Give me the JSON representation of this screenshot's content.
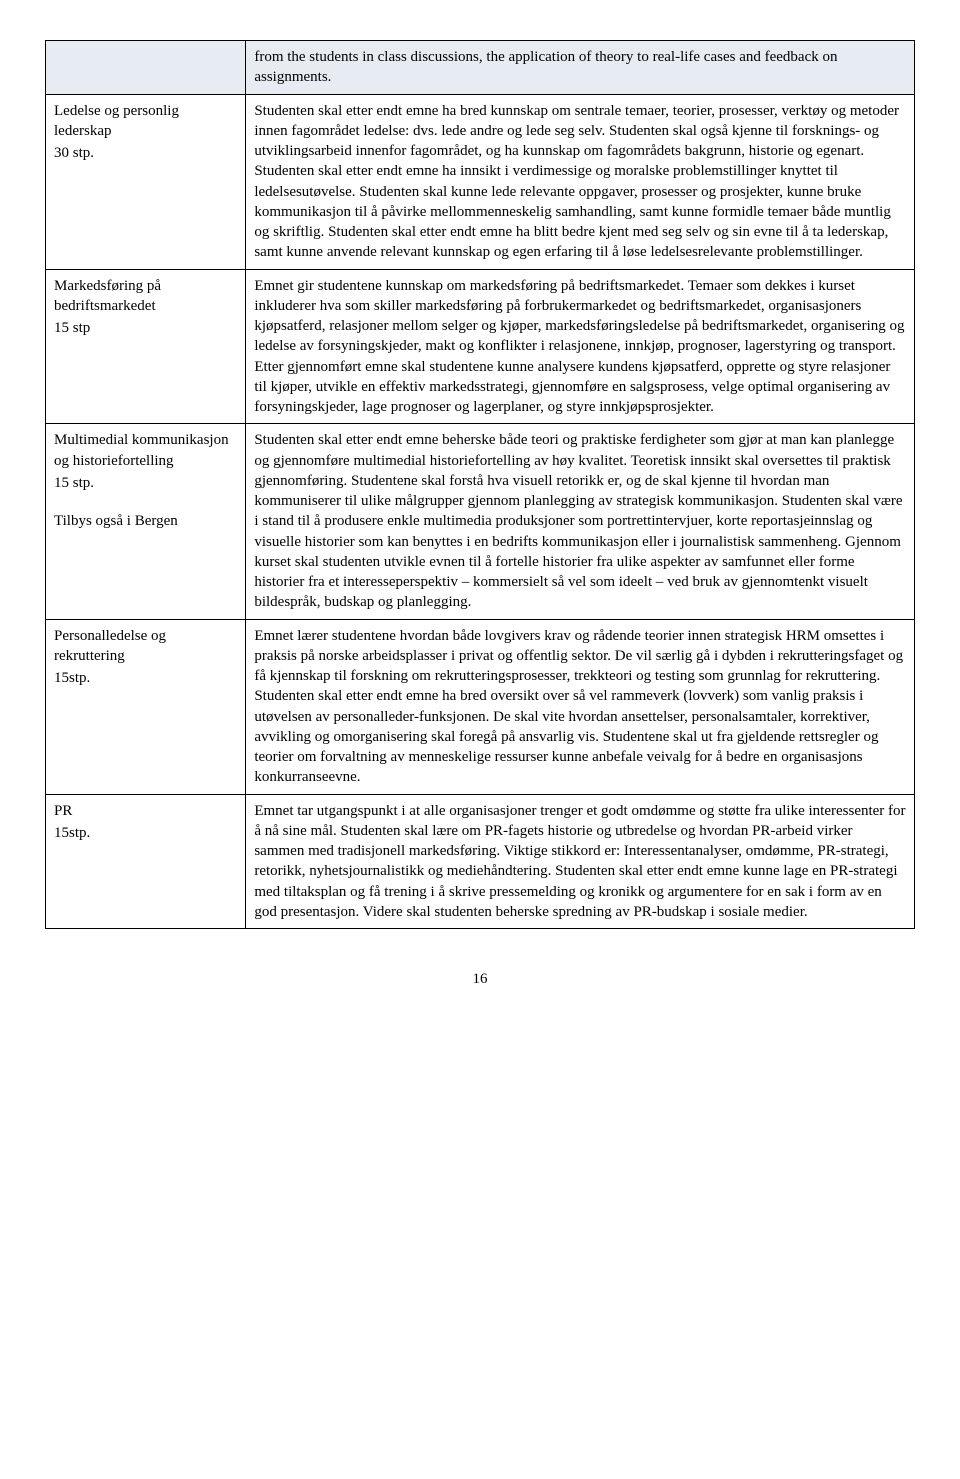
{
  "intro": {
    "left": "",
    "right": "from the students in class discussions, the application of theory to real-life cases and feedback on assignments."
  },
  "rows": [
    {
      "name": "Ledelse og personlig lederskap",
      "credits": "30 stp.",
      "extra": "",
      "desc": "Studenten skal etter endt emne ha bred kunnskap om sentrale temaer, teorier, prosesser, verktøy og metoder innen fagområdet ledelse: dvs. lede andre og lede seg selv. Studenten skal også kjenne til forsknings- og utviklingsarbeid innenfor fagområdet, og ha kunnskap om fagområdets bakgrunn, historie og egenart. Studenten skal etter endt emne ha innsikt i verdimessige og moralske problemstillinger knyttet til ledelsesutøvelse. Studenten skal kunne lede relevante oppgaver, prosesser og prosjekter, kunne bruke kommunikasjon til å påvirke mellommenneskelig samhandling, samt kunne formidle temaer både muntlig og skriftlig. Studenten skal etter endt emne ha blitt bedre kjent med seg selv og sin evne til å ta lederskap, samt kunne anvende relevant kunnskap og egen erfaring til å løse ledelsesrelevante problemstillinger."
    },
    {
      "name": "Markedsføring på bedriftsmarkedet",
      "credits": "15 stp",
      "extra": "",
      "desc": "Emnet gir studentene kunnskap om markedsføring på bedriftsmarkedet. Temaer som dekkes i kurset inkluderer hva som skiller markedsføring på forbrukermarkedet og bedriftsmarkedet, organisasjoners kjøpsatferd, relasjoner mellom selger og kjøper, markedsføringsledelse på bedriftsmarkedet, organisering og ledelse av forsyningskjeder, makt og konflikter i relasjonene, innkjøp, prognoser, lagerstyring og transport. Etter gjennomført emne skal studentene kunne analysere kundens kjøpsatferd, opprette og styre relasjoner til kjøper, utvikle en effektiv markedsstrategi, gjennomføre en salgsprosess, velge optimal organisering av forsyningskjeder, lage prognoser og lagerplaner, og styre innkjøpsprosjekter."
    },
    {
      "name": "Multimedial kommunikasjon og historiefortelling",
      "credits": "15 stp.",
      "extra": "Tilbys også i Bergen",
      "desc": "Studenten skal etter endt emne beherske både teori og praktiske ferdigheter som gjør at man kan planlegge og gjennomføre multimedial historiefortelling av høy kvalitet. Teoretisk innsikt skal oversettes til praktisk gjennomføring. Studentene skal forstå hva visuell retorikk er, og de skal kjenne til hvordan man kommuniserer til ulike målgrupper gjennom planlegging av strategisk kommunikasjon. Studenten skal være i stand til å produsere enkle multimedia produksjoner som portrettintervjuer, korte reportasjeinnslag og visuelle historier som kan benyttes i en bedrifts kommunikasjon eller i journalistisk sammenheng. Gjennom kurset skal studenten utvikle evnen til å fortelle historier fra ulike aspekter av samfunnet eller forme historier fra et interesseperspektiv – kommersielt så vel som ideelt – ved bruk av gjennomtenkt visuelt bildespråk, budskap og planlegging."
    },
    {
      "name": "Personalledelse og rekruttering",
      "credits": "15stp.",
      "extra": "",
      "desc": "Emnet lærer studentene hvordan både lovgivers krav og rådende teorier innen strategisk HRM omsettes i praksis på norske arbeidsplasser i privat og offentlig sektor. De vil særlig gå i dybden i rekrutteringsfaget og få kjennskap til forskning om rekrutteringsprosesser, trekkteori og testing som grunnlag for rekruttering. Studenten skal etter endt emne ha bred oversikt over så vel rammeverk (lovverk) som vanlig praksis i utøvelsen av personalleder-funksjonen. De skal vite hvordan ansettelser, personalsamtaler, korrektiver, avvikling og omorganisering skal foregå på ansvarlig vis. Studentene skal ut fra gjeldende rettsregler og teorier om forvaltning av menneskelige ressurser kunne anbefale veivalg for å bedre en organisasjons konkurranseevne."
    },
    {
      "name": "PR",
      "credits": "15stp.",
      "extra": "",
      "desc": "Emnet tar utgangspunkt i at alle organisasjoner trenger et godt omdømme og støtte fra ulike interessenter for å nå sine mål. Studenten skal lære om PR-fagets historie og utbredelse og hvordan PR-arbeid virker sammen med tradisjonell markedsføring.  Viktige stikkord er: Interessentanalyser, omdømme, PR-strategi, retorikk, nyhetsjournalistikk og mediehåndtering. Studenten skal etter endt emne kunne lage en PR-strategi med tiltaksplan og få trening i å skrive pressemelding og kronikk og argumentere for en sak i form av en god presentasjon. Videre skal studenten beherske spredning av PR-budskap i sosiale medier."
    }
  ],
  "page_number": "16"
}
